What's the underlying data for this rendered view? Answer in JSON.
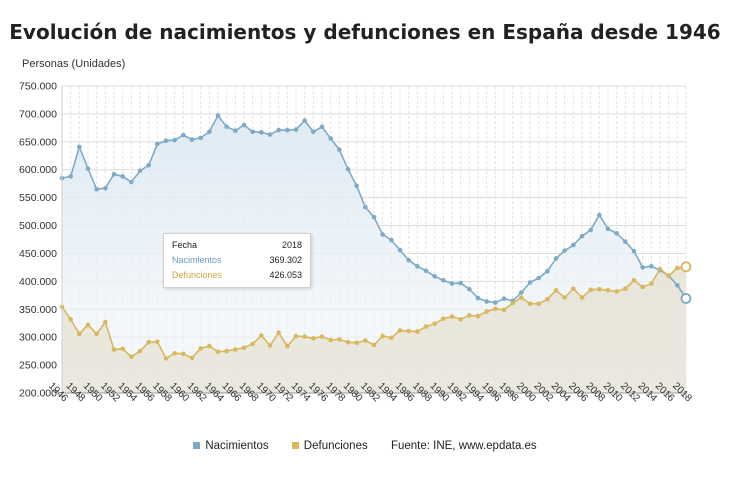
{
  "chart_data": {
    "type": "line",
    "title": "Evolución de nacimientos y defunciones en España desde 1946",
    "ylabel": "Personas (Unidades)",
    "xlabel": "",
    "ylim": [
      200000,
      750000
    ],
    "yticks": [
      200000,
      250000,
      300000,
      350000,
      400000,
      450000,
      500000,
      550000,
      600000,
      650000,
      700000,
      750000
    ],
    "ytick_labels": [
      "200.000",
      "250.000",
      "300.000",
      "350.000",
      "400.000",
      "450.000",
      "500.000",
      "550.000",
      "600.000",
      "650.000",
      "700.000",
      "750.000"
    ],
    "xlim": [
      1946,
      2018
    ],
    "xtick_labels": [
      "1946",
      "1948",
      "1950",
      "1952",
      "1954",
      "1956",
      "1958",
      "1960",
      "1962",
      "1964",
      "1966",
      "1968",
      "1970",
      "1972",
      "1974",
      "1976",
      "1978",
      "1980",
      "1982",
      "1984",
      "1986",
      "1988",
      "1990",
      "1992",
      "1994",
      "1996",
      "1998",
      "2000",
      "2002",
      "2004",
      "2006",
      "2008",
      "2010",
      "2012",
      "2014",
      "2016",
      "2018"
    ],
    "grid": true,
    "years": [
      1946,
      1947,
      1948,
      1949,
      1950,
      1951,
      1952,
      1953,
      1954,
      1955,
      1956,
      1957,
      1958,
      1959,
      1960,
      1961,
      1962,
      1963,
      1964,
      1965,
      1966,
      1967,
      1968,
      1969,
      1970,
      1971,
      1972,
      1973,
      1974,
      1975,
      1976,
      1977,
      1978,
      1979,
      1980,
      1981,
      1982,
      1983,
      1984,
      1985,
      1986,
      1987,
      1988,
      1989,
      1990,
      1991,
      1992,
      1993,
      1994,
      1995,
      1996,
      1997,
      1998,
      1999,
      2000,
      2001,
      2002,
      2003,
      2004,
      2005,
      2006,
      2007,
      2008,
      2009,
      2010,
      2011,
      2012,
      2013,
      2014,
      2015,
      2016,
      2017,
      2018
    ],
    "series": [
      {
        "name": "Nacimientos",
        "color": "#7eaac8",
        "values": [
          585000,
          588000,
          641000,
          602000,
          565000,
          567000,
          592000,
          588000,
          578000,
          598000,
          608000,
          646000,
          652000,
          653000,
          662000,
          654000,
          657000,
          668000,
          697000,
          677000,
          670000,
          680000,
          668000,
          667000,
          663000,
          671000,
          671000,
          672000,
          688000,
          668000,
          677000,
          656000,
          636000,
          601000,
          571000,
          533000,
          515000,
          484000,
          474000,
          456000,
          438000,
          427000,
          419000,
          409000,
          402000,
          396000,
          397000,
          386000,
          370000,
          364000,
          362000,
          369000,
          365000,
          380000,
          398000,
          406000,
          418000,
          441000,
          455000,
          465000,
          481000,
          492000,
          519000,
          494000,
          486000,
          471000,
          454000,
          425000,
          427000,
          420000,
          410000,
          393000,
          369302
        ]
      },
      {
        "name": "Defunciones",
        "color": "#d9b75d",
        "values": [
          354000,
          332000,
          306000,
          322000,
          306000,
          327000,
          278000,
          279000,
          265000,
          275000,
          291000,
          292000,
          262000,
          271000,
          270000,
          263000,
          280000,
          284000,
          274000,
          275000,
          278000,
          281000,
          288000,
          303000,
          285000,
          308000,
          284000,
          302000,
          301000,
          298000,
          301000,
          295000,
          296000,
          291000,
          290000,
          294000,
          286000,
          302000,
          299000,
          312000,
          311000,
          310000,
          319000,
          324000,
          333000,
          337000,
          332000,
          339000,
          338000,
          346000,
          351000,
          349000,
          361000,
          371000,
          360000,
          360000,
          368000,
          384000,
          371000,
          387000,
          371000,
          385000,
          386000,
          384000,
          382000,
          387000,
          402000,
          390000,
          396000,
          422000,
          410000,
          424000,
          426053
        ]
      }
    ],
    "tooltip": {
      "header_label": "Fecha",
      "header_value": "2018",
      "rows": [
        {
          "label": "Nacimientos",
          "value": "369.302"
        },
        {
          "label": "Defunciones",
          "value": "426.053"
        }
      ]
    },
    "legend": {
      "items": [
        "Nacimientos",
        "Defunciones"
      ],
      "source": "Fuente: INE, www.epdata.es",
      "position": "bottom"
    }
  }
}
